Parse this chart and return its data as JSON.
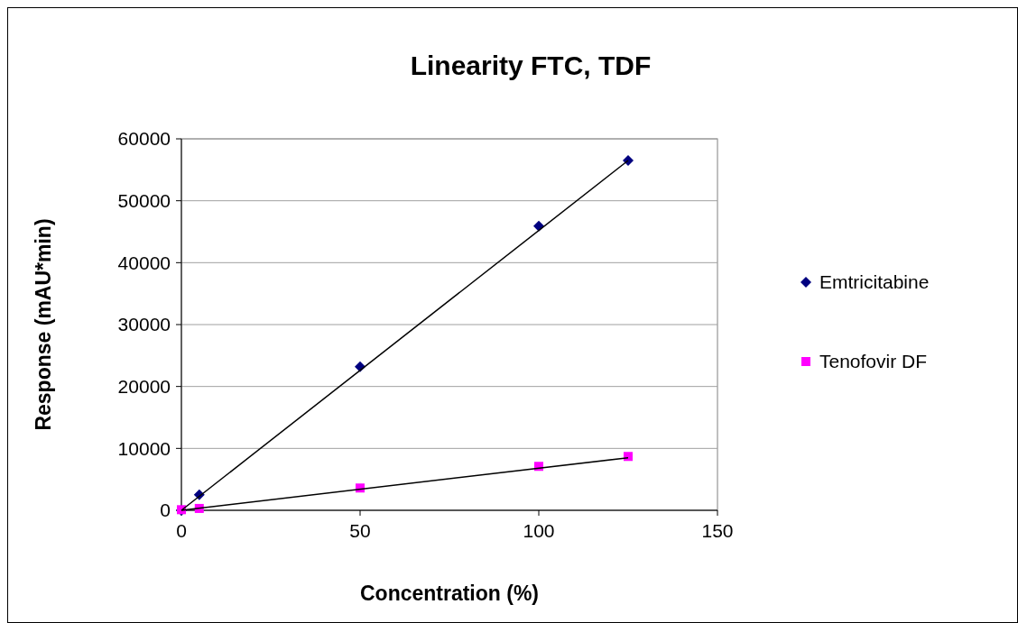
{
  "chart_data": {
    "type": "scatter",
    "title": "Linearity FTC, TDF",
    "xlabel": "Concentration (%)",
    "ylabel": "Response (mAU*min)",
    "xlim": [
      0,
      150
    ],
    "xticks": [
      0,
      50,
      100,
      150
    ],
    "ylim": [
      0,
      60000
    ],
    "yticks": [
      0,
      10000,
      20000,
      30000,
      40000,
      50000,
      60000
    ],
    "grid": "y",
    "legend": "right",
    "series": [
      {
        "name": "Emtricitabine",
        "color": "#000080",
        "marker": "diamond",
        "x": [
          0,
          5,
          50,
          100,
          125
        ],
        "values": [
          0,
          2500,
          23200,
          45900,
          56500
        ]
      },
      {
        "name": "Tenofovir DF",
        "color": "#ff00ff",
        "marker": "square",
        "x": [
          0,
          5,
          50,
          100,
          125
        ],
        "values": [
          100,
          300,
          3600,
          7100,
          8700
        ]
      },
      {
        "type": "line",
        "color": "#000000",
        "marker": "none",
        "x": [
          0,
          125
        ],
        "values": [
          0,
          56500
        ]
      },
      {
        "type": "line",
        "color": "#000000",
        "marker": "none",
        "x": [
          0,
          125
        ],
        "values": [
          0,
          8500
        ]
      }
    ]
  }
}
